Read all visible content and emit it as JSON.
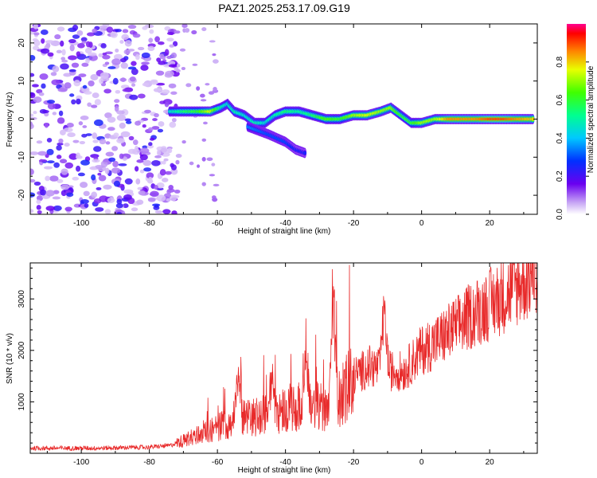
{
  "figure": {
    "title": "PAZ1.2025.253.17.09.G19"
  },
  "chart_data": [
    {
      "type": "heatmap",
      "xlabel": "Height of straight line (km)",
      "ylabel": "Frequency (Hz)",
      "xlim": [
        -115,
        34
      ],
      "ylim": [
        -25,
        25
      ],
      "x_ticks": [
        -100,
        -80,
        -60,
        -40,
        -20,
        0,
        20
      ],
      "y_ticks": [
        20,
        10,
        0,
        -10,
        -20
      ],
      "colorbar": {
        "label": "Normalized spectral amplitude",
        "range": [
          0,
          1
        ],
        "ticks": [
          0.0,
          0.2,
          0.4,
          0.6,
          0.8
        ],
        "colormap": "rainbow (violet to red)"
      },
      "noise_region_x": [
        -115,
        -72
      ],
      "ridge": [
        {
          "x": -74,
          "y": 2,
          "amp": 0.45
        },
        {
          "x": -70,
          "y": 2,
          "amp": 0.55
        },
        {
          "x": -66,
          "y": 2,
          "amp": 0.6
        },
        {
          "x": -62,
          "y": 2,
          "amp": 0.75
        },
        {
          "x": -59,
          "y": 3,
          "amp": 0.5
        },
        {
          "x": -57,
          "y": 4,
          "amp": 0.45
        },
        {
          "x": -55,
          "y": 2,
          "amp": 0.5
        },
        {
          "x": -52,
          "y": 1,
          "amp": 0.45
        },
        {
          "x": -49,
          "y": -1,
          "amp": 0.5
        },
        {
          "x": -46,
          "y": -1,
          "amp": 0.45
        },
        {
          "x": -43,
          "y": 1,
          "amp": 0.5
        },
        {
          "x": -40,
          "y": 2,
          "amp": 0.55
        },
        {
          "x": -36,
          "y": 2,
          "amp": 0.5
        },
        {
          "x": -32,
          "y": 1,
          "amp": 0.55
        },
        {
          "x": -28,
          "y": 0,
          "amp": 0.65
        },
        {
          "x": -24,
          "y": 0,
          "amp": 0.6
        },
        {
          "x": -20,
          "y": 1,
          "amp": 0.7
        },
        {
          "x": -16,
          "y": 1,
          "amp": 0.75
        },
        {
          "x": -12,
          "y": 2,
          "amp": 0.7
        },
        {
          "x": -9,
          "y": 3,
          "amp": 0.7
        },
        {
          "x": -6,
          "y": 1,
          "amp": 0.6
        },
        {
          "x": -3,
          "y": -1,
          "amp": 0.6
        },
        {
          "x": 0,
          "y": -1,
          "amp": 0.7
        },
        {
          "x": 4,
          "y": 0,
          "amp": 0.7
        },
        {
          "x": 8,
          "y": 0,
          "amp": 0.85
        },
        {
          "x": 12,
          "y": 0,
          "amp": 0.85
        },
        {
          "x": 16,
          "y": 0,
          "amp": 0.85
        },
        {
          "x": 20,
          "y": 0,
          "amp": 0.9
        },
        {
          "x": 24,
          "y": 0,
          "amp": 0.9
        },
        {
          "x": 28,
          "y": 0,
          "amp": 0.85
        },
        {
          "x": 33,
          "y": 0,
          "amp": 0.8
        }
      ],
      "branch": [
        {
          "x": -51,
          "y": -2,
          "amp": 0.35
        },
        {
          "x": -45,
          "y": -4,
          "amp": 0.3
        },
        {
          "x": -40,
          "y": -6,
          "amp": 0.3
        },
        {
          "x": -37,
          "y": -8,
          "amp": 0.25
        },
        {
          "x": -34,
          "y": -9,
          "amp": 0.25
        }
      ]
    },
    {
      "type": "line",
      "xlabel": "Height of straight line (km)",
      "ylabel": "SNR (10 * v/v)",
      "xlim": [
        -115,
        34
      ],
      "ylim": [
        0,
        3700
      ],
      "x_ticks": [
        -100,
        -80,
        -60,
        -40,
        -20,
        0,
        20
      ],
      "y_ticks": [
        1000,
        2000,
        3000
      ],
      "color": "#e82a2a",
      "envelope": [
        {
          "x": -115,
          "y": 100
        },
        {
          "x": -95,
          "y": 100
        },
        {
          "x": -80,
          "y": 120
        },
        {
          "x": -74,
          "y": 150
        },
        {
          "x": -70,
          "y": 250
        },
        {
          "x": -65,
          "y": 380
        },
        {
          "x": -60,
          "y": 500
        },
        {
          "x": -55,
          "y": 650
        },
        {
          "x": -50,
          "y": 700
        },
        {
          "x": -45,
          "y": 800
        },
        {
          "x": -40,
          "y": 850
        },
        {
          "x": -35,
          "y": 900
        },
        {
          "x": -30,
          "y": 900
        },
        {
          "x": -25,
          "y": 950
        },
        {
          "x": -20,
          "y": 1500
        },
        {
          "x": -15,
          "y": 1700
        },
        {
          "x": -10,
          "y": 1600
        },
        {
          "x": -5,
          "y": 1600
        },
        {
          "x": 0,
          "y": 2000
        },
        {
          "x": 5,
          "y": 2200
        },
        {
          "x": 10,
          "y": 2450
        },
        {
          "x": 15,
          "y": 2700
        },
        {
          "x": 20,
          "y": 2900
        },
        {
          "x": 25,
          "y": 3100
        },
        {
          "x": 30,
          "y": 3350
        },
        {
          "x": 34,
          "y": 3450
        }
      ],
      "spikes": [
        {
          "x": -54,
          "y": 1550
        },
        {
          "x": -44,
          "y": 1500
        },
        {
          "x": -34,
          "y": 2250
        },
        {
          "x": -26,
          "y": 3250
        },
        {
          "x": -11,
          "y": 3000
        },
        {
          "x": 33,
          "y": 3700
        }
      ]
    }
  ]
}
